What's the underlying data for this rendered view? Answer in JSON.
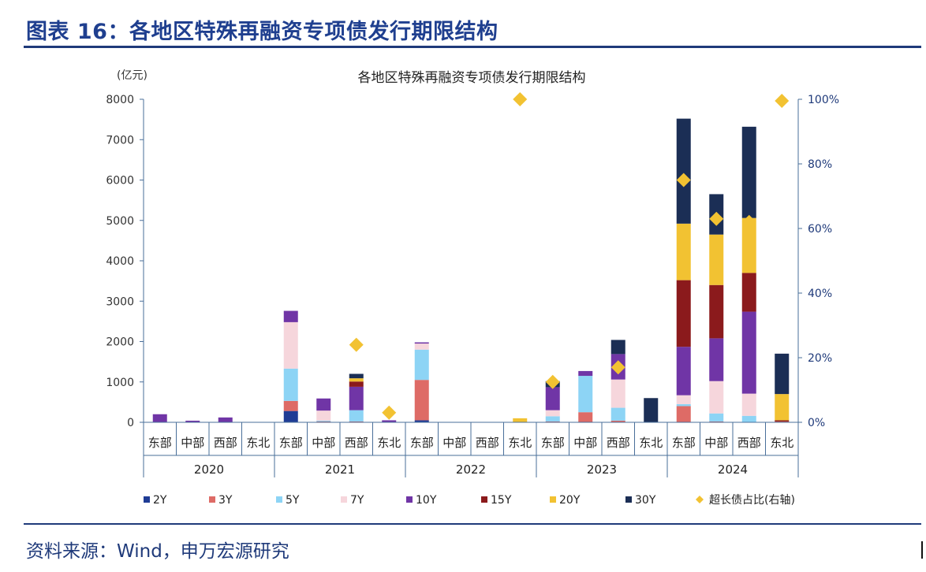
{
  "page": {
    "figure_title": "图表 16：各地区特殊再融资专项债发行期限结构",
    "source": "资料来源：Wind，申万宏源研究"
  },
  "chart_data": {
    "type": "bar",
    "stacked": true,
    "title": "各地区特殊再融资专项债发行期限结构",
    "ylabel": "(亿元)",
    "ylim": [
      0,
      8000
    ],
    "y_ticks": [
      "0",
      "1000",
      "2000",
      "3000",
      "4000",
      "5000",
      "6000",
      "7000",
      "8000"
    ],
    "y2lim": [
      0,
      100
    ],
    "y2_ticks": [
      "0%",
      "20%",
      "40%",
      "60%",
      "80%",
      "100%"
    ],
    "groups": [
      "2020",
      "2021",
      "2022",
      "2023",
      "2024"
    ],
    "regions": [
      "东部",
      "中部",
      "西部",
      "东北"
    ],
    "series": [
      {
        "name": "2Y",
        "color": "#1f3c95",
        "values": [
          0,
          0,
          0,
          0,
          280,
          0,
          0,
          0,
          50,
          0,
          0,
          0,
          0,
          0,
          0,
          0,
          0,
          0,
          0,
          0
        ]
      },
      {
        "name": "3Y",
        "color": "#de6b66",
        "values": [
          0,
          0,
          0,
          0,
          250,
          20,
          20,
          0,
          1000,
          0,
          0,
          0,
          20,
          250,
          40,
          0,
          400,
          20,
          0,
          20
        ]
      },
      {
        "name": "5Y",
        "color": "#8dd4f5",
        "values": [
          0,
          0,
          0,
          0,
          800,
          20,
          280,
          0,
          750,
          0,
          0,
          0,
          130,
          900,
          320,
          0,
          50,
          200,
          160,
          0
        ]
      },
      {
        "name": "7Y",
        "color": "#f6d6dc",
        "values": [
          0,
          0,
          0,
          0,
          1150,
          250,
          0,
          0,
          150,
          0,
          0,
          0,
          150,
          0,
          700,
          0,
          220,
          800,
          550,
          0
        ]
      },
      {
        "name": "10Y",
        "color": "#7035a6",
        "values": [
          200,
          40,
          120,
          0,
          280,
          300,
          580,
          50,
          30,
          0,
          0,
          0,
          570,
          120,
          630,
          0,
          1200,
          1060,
          2030,
          0
        ]
      },
      {
        "name": "15Y",
        "color": "#8b1a1c",
        "values": [
          0,
          0,
          0,
          0,
          0,
          0,
          130,
          0,
          0,
          0,
          0,
          0,
          0,
          0,
          0,
          0,
          1650,
          1320,
          960,
          30
        ]
      },
      {
        "name": "20Y",
        "color": "#f2c232",
        "values": [
          0,
          0,
          0,
          0,
          0,
          0,
          80,
          0,
          0,
          0,
          0,
          100,
          0,
          0,
          0,
          0,
          1400,
          1250,
          1360,
          650
        ]
      },
      {
        "name": "30Y",
        "color": "#1b2e55",
        "values": [
          0,
          0,
          0,
          0,
          0,
          0,
          110,
          0,
          0,
          0,
          0,
          0,
          150,
          0,
          350,
          600,
          2600,
          1000,
          2260,
          1000
        ]
      }
    ],
    "line_series": {
      "name": "超长债占比(右轴)",
      "color": "#f2c232",
      "values": [
        null,
        null,
        null,
        null,
        null,
        null,
        24,
        3,
        null,
        null,
        null,
        100,
        12.5,
        null,
        17,
        null,
        75,
        63,
        62,
        99.5
      ]
    }
  }
}
